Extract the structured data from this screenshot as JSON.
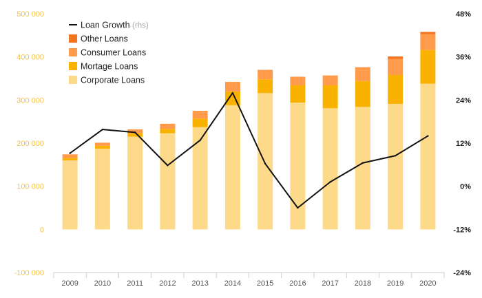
{
  "chart_data": {
    "type": "bar",
    "title": "",
    "xlabel": "",
    "ylabel": "",
    "categories": [
      "2009",
      "2010",
      "2011",
      "2012",
      "2013",
      "2014",
      "2015",
      "2016",
      "2017",
      "2018",
      "2019",
      "2020"
    ],
    "ylim": [
      -100000,
      500000
    ],
    "yticks": [
      500000,
      400000,
      300000,
      200000,
      100000,
      0,
      -100000
    ],
    "ytick_labels": [
      "500 000",
      "400 000",
      "300 000",
      "200 000",
      "100 000",
      "0",
      "-100 000"
    ],
    "y2lim": [
      -24,
      48
    ],
    "y2ticks": [
      48,
      36,
      24,
      12,
      0,
      -12,
      -24
    ],
    "y2tick_labels": [
      "48%",
      "36%",
      "24%",
      "12%",
      "0%",
      "-12%",
      "-24%"
    ],
    "stacked": true,
    "series": [
      {
        "name": "Corporate Loans",
        "color": "#fdd98a",
        "values": [
          160000,
          187000,
          215000,
          223000,
          237000,
          288000,
          316000,
          294000,
          281000,
          284000,
          291000,
          338000
        ]
      },
      {
        "name": "Mortage Loans",
        "color": "#f9b200",
        "values": [
          5000,
          7000,
          8000,
          10000,
          20000,
          32000,
          32000,
          40000,
          53000,
          60000,
          67000,
          78000
        ]
      },
      {
        "name": "Consumer Loans",
        "color": "#ff9b4a",
        "values": [
          9000,
          7000,
          9000,
          12000,
          18000,
          22000,
          22000,
          20000,
          23000,
          31000,
          37000,
          37000
        ]
      },
      {
        "name": "Other Loans",
        "color": "#f47521",
        "values": [
          0,
          0,
          0,
          0,
          0,
          0,
          0,
          0,
          0,
          1000,
          6000,
          5000
        ]
      }
    ],
    "line": {
      "name": "Loan Growth",
      "suffix": "(rhs)",
      "axis": "right",
      "color": "#111111",
      "values": [
        9.2,
        15.8,
        15.0,
        5.8,
        12.8,
        26.0,
        6.3,
        -6.0,
        1.2,
        6.5,
        8.5,
        14.0
      ]
    },
    "legend_position": "top-left",
    "grid": false
  }
}
